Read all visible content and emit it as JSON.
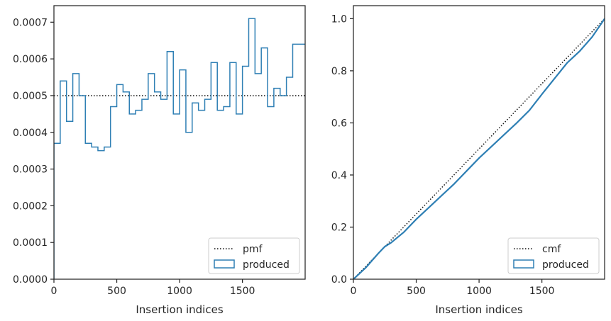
{
  "colors": {
    "produced": "#2e7fb4",
    "reference": "#111111",
    "axes": "#262626"
  },
  "chart_data": [
    {
      "type": "histogram-step",
      "title": "",
      "xlabel": "Insertion indices",
      "ylabel": "",
      "xlim": [
        0,
        1999
      ],
      "ylim": [
        0,
        0.000745
      ],
      "xticks": [
        0,
        500,
        1000,
        1500
      ],
      "xtick_labels": [
        "0",
        "500",
        "1000",
        "1500"
      ],
      "yticks": [
        0,
        0.0001,
        0.0002,
        0.0003,
        0.0004,
        0.0005,
        0.0006,
        0.0007
      ],
      "ytick_labels": [
        "0.0000",
        "0.0001",
        "0.0002",
        "0.0003",
        "0.0004",
        "0.0005",
        "0.0006",
        "0.0007"
      ],
      "grid": false,
      "legend": "lower-right",
      "bin_width": 50,
      "series": [
        {
          "name": "pmf",
          "style": "dotted",
          "values": [
            0.0005
          ]
        },
        {
          "name": "produced",
          "style": "step",
          "values": [
            0.00037,
            0.00054,
            0.00043,
            0.00056,
            0.0005,
            0.00037,
            0.00036,
            0.00035,
            0.00036,
            0.00047,
            0.00053,
            0.00051,
            0.00045,
            0.00046,
            0.00049,
            0.00056,
            0.00051,
            0.00049,
            0.00062,
            0.00045,
            0.00057,
            0.0004,
            0.00048,
            0.00046,
            0.00049,
            0.00059,
            0.00046,
            0.00047,
            0.00059,
            0.00045,
            0.00058,
            0.00071,
            0.00056,
            0.00063,
            0.00047,
            0.00052,
            0.0005,
            0.00055,
            0.00064,
            0.00064
          ]
        }
      ]
    },
    {
      "type": "line",
      "title": "",
      "xlabel": "Insertion indices",
      "ylabel": "",
      "xlim": [
        0,
        1999
      ],
      "ylim": [
        0,
        1.05
      ],
      "xticks": [
        0,
        500,
        1000,
        1500
      ],
      "xtick_labels": [
        "0",
        "500",
        "1000",
        "1500"
      ],
      "yticks": [
        0,
        0.2,
        0.4,
        0.6,
        0.8,
        1.0
      ],
      "ytick_labels": [
        "0.0",
        "0.2",
        "0.4",
        "0.6",
        "0.8",
        "1.0"
      ],
      "grid": false,
      "legend": "lower-right",
      "series": [
        {
          "name": "cmf",
          "style": "dotted",
          "x": [
            0,
            1999
          ],
          "y": [
            0,
            1.0
          ]
        },
        {
          "name": "produced",
          "style": "line",
          "x": [
            0,
            100,
            200,
            250,
            300,
            400,
            500,
            600,
            700,
            800,
            900,
            1000,
            1100,
            1200,
            1300,
            1400,
            1500,
            1600,
            1700,
            1800,
            1900,
            1999
          ],
          "y": [
            0,
            0.045,
            0.1,
            0.125,
            0.14,
            0.18,
            0.23,
            0.275,
            0.32,
            0.365,
            0.415,
            0.465,
            0.51,
            0.555,
            0.6,
            0.648,
            0.71,
            0.77,
            0.83,
            0.875,
            0.93,
            1.0
          ]
        }
      ]
    }
  ]
}
